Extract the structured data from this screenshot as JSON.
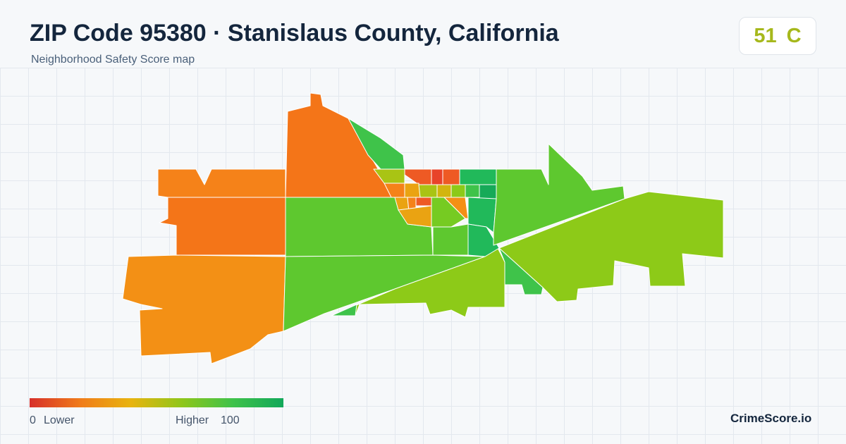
{
  "header": {
    "title": "ZIP Code 95380 · Stanislaus County, California",
    "subtitle": "Neighborhood Safety Score map"
  },
  "score": {
    "value": "51",
    "grade": "C",
    "color": "#a6b81c"
  },
  "legend": {
    "min": "0",
    "min_label": "Lower",
    "max_label": "Higher",
    "max": "100",
    "colors": [
      "#d7302a",
      "#f07c1a",
      "#e8b40f",
      "#8fc61a",
      "#3fc24a",
      "#12a85a"
    ]
  },
  "brand": "CrimeScore.io",
  "map": {
    "fill_colors": {
      "red": "#e8432a",
      "red_orange": "#ee5a24",
      "orange_dark": "#f47518",
      "orange": "#f58219",
      "orange_light": "#f39015",
      "amber": "#eaa312",
      "yellow": "#d2b50e",
      "lime_yellow": "#a9c414",
      "lime": "#8dca18",
      "green_yellow": "#76cb22",
      "green": "#5ec82f",
      "green_mid": "#3fc34a",
      "teal_green": "#21b95a",
      "dark_green": "#16aa58"
    }
  }
}
